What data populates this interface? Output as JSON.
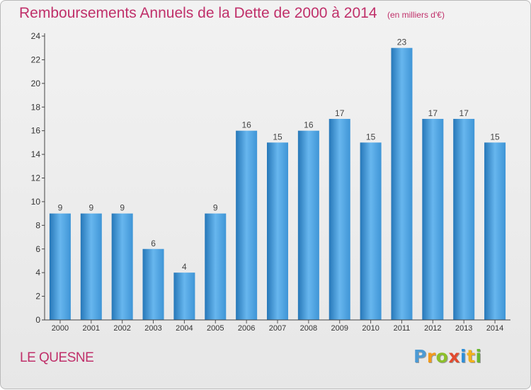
{
  "chart_data": {
    "type": "bar",
    "title": "Remboursements Annuels de la Dette de 2000 à 2014",
    "unit_note": "(en milliers d'€)",
    "categories": [
      "2000",
      "2001",
      "2002",
      "2003",
      "2004",
      "2005",
      "2006",
      "2007",
      "2008",
      "2009",
      "2010",
      "2011",
      "2012",
      "2013",
      "2014"
    ],
    "values": [
      9,
      9,
      9,
      6,
      4,
      9,
      16,
      15,
      16,
      17,
      15,
      23,
      17,
      17,
      15
    ],
    "data_labels": [
      "9",
      "9",
      "9",
      "6",
      "4",
      "9",
      "16",
      "15",
      "16",
      "17",
      "15",
      "23",
      "17",
      "17",
      "15"
    ],
    "yticks": [
      "0",
      "2",
      "4",
      "6",
      "8",
      "10",
      "12",
      "14",
      "16",
      "18",
      "20",
      "22",
      "24"
    ],
    "ylim": [
      0,
      24
    ],
    "xlabel": "",
    "ylabel": "",
    "grid": false,
    "legend": "none",
    "bar_color": "#3f95d6",
    "bar_color_light": "#67b6ee",
    "bar_color_dark": "#2677b8"
  },
  "footer": {
    "commune": "LE QUESNE",
    "brand_letters": [
      {
        "char": "P",
        "color": "#4c9ad4"
      },
      {
        "char": "r",
        "color": "#f29a1c"
      },
      {
        "char": "o",
        "color": "#8cbf2a"
      },
      {
        "char": "x",
        "color": "#e24a2f"
      },
      {
        "char": "i",
        "color": "#2f8fd8"
      },
      {
        "char": "t",
        "color": "#f2b11c"
      },
      {
        "char": "i",
        "color": "#67b82f"
      }
    ]
  }
}
